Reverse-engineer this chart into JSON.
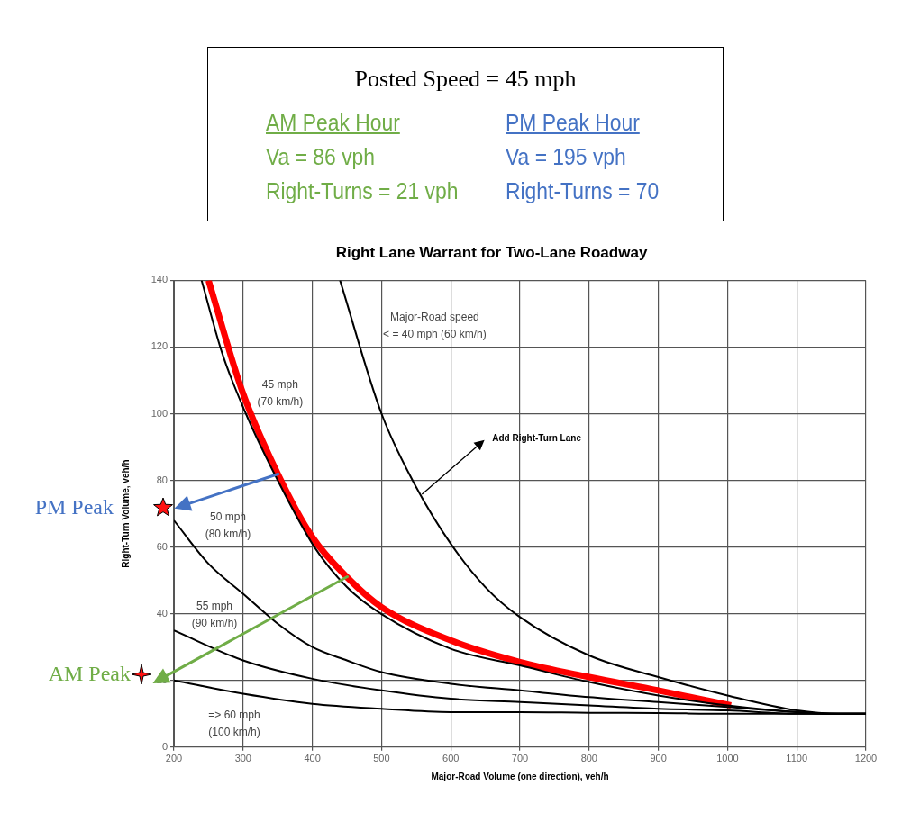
{
  "chart_data": {
    "type": "line",
    "title": "Right Lane Warrant for Two-Lane Roadway",
    "xlabel": "Major-Road Volume (one direction), veh/h",
    "ylabel": "Right-Turn Volume, veh/h",
    "xlim": [
      200,
      1200
    ],
    "xticks": [
      200,
      300,
      400,
      500,
      600,
      700,
      800,
      900,
      1000,
      1100,
      1200
    ],
    "ylim": [
      0,
      140
    ],
    "yticks": [
      0,
      20,
      40,
      60,
      80,
      100,
      120,
      140
    ],
    "grid": true,
    "marker": "none",
    "line_style": "solid",
    "series": [
      {
        "color": "#000000",
        "x": [
          440,
          500,
          550,
          600,
          650,
          700,
          800,
          900,
          1000,
          1100,
          1160,
          1200
        ],
        "values": [
          140,
          100,
          78,
          61,
          48,
          39,
          27.5,
          21,
          15.5,
          11,
          10,
          10
        ]
      },
      {
        "color": "#000000",
        "x": [
          240,
          270,
          304,
          350,
          403,
          450,
          499,
          600,
          700,
          800,
          900,
          1000,
          1100,
          1160,
          1200
        ],
        "values": [
          140,
          118,
          100,
          80,
          60,
          48,
          40,
          29.5,
          24.5,
          19.5,
          15.5,
          12.5,
          10.5,
          10,
          10
        ]
      },
      {
        "color": "#000000",
        "x": [
          200,
          250,
          300,
          350,
          400,
          450,
          500,
          600,
          700,
          800,
          900,
          1000,
          1100,
          1160,
          1200
        ],
        "values": [
          68,
          55,
          46,
          37,
          30,
          26,
          22.5,
          19,
          17,
          15,
          13.5,
          12,
          10.5,
          10,
          10
        ]
      },
      {
        "color": "#000000",
        "x": [
          200,
          300,
          400,
          500,
          600,
          700,
          800,
          900,
          1000,
          1100,
          1160,
          1200
        ],
        "values": [
          35,
          26,
          20.5,
          17,
          14.5,
          13.5,
          12.5,
          11.5,
          11,
          10,
          10,
          10
        ]
      },
      {
        "color": "#000000",
        "x": [
          200,
          300,
          400,
          500,
          600,
          700,
          800,
          900,
          1000,
          1100,
          1160,
          1200
        ],
        "values": [
          20,
          16,
          13,
          11.5,
          10.5,
          10.5,
          10.3,
          10.2,
          10,
          10,
          10,
          10
        ]
      },
      {
        "color": "#ff0000",
        "x": [
          250,
          300,
          350,
          400,
          450,
          500,
          600,
          700,
          800,
          900,
          1005
        ],
        "values": [
          140,
          106,
          82,
          63,
          51,
          42,
          32,
          25.5,
          21,
          17,
          12.5
        ]
      }
    ],
    "annotations": [
      "Posted Speed = 45 mph",
      "AM Peak Hour",
      "Va = 86 vph",
      "Right-Turns = 21 vph",
      "PM Peak Hour",
      "Va = 195 vph",
      "Right-Turns = 70",
      "PM Peak",
      "AM Peak",
      "Major-Road speed\n< = 40 mph (60 km/h)",
      "45 mph\n(70 km/h)",
      "50 mph\n(80 km/h)",
      "55 mph\n(90 km/h)",
      "=> 60 mph\n(100 km/h)",
      "Add Right-Turn Lane"
    ]
  }
}
